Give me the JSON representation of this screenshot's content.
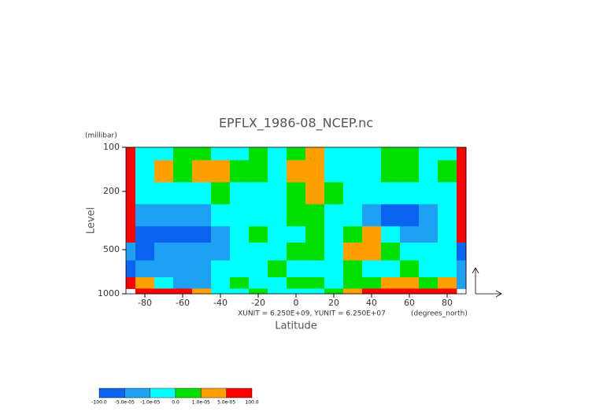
{
  "chart_data": {
    "type": "contour",
    "title": "EPFLX_1986-08_NCEP.nc",
    "x_label": "Latitude",
    "x_units": "(degrees_north)",
    "y_label": "Level",
    "y_units": "(millibar)",
    "annotation": "XUNIT = 6.250E+09, YUNIT = 6.250E+07",
    "x": [
      -90,
      -80,
      -70,
      -60,
      -50,
      -40,
      -30,
      -20,
      -10,
      0,
      10,
      20,
      30,
      40,
      50,
      60,
      70,
      80,
      90
    ],
    "y": [
      100,
      150,
      200,
      300,
      400,
      500,
      700,
      850,
      1000
    ],
    "z": [
      [
        7e-05,
        -5e-06,
        -5e-06,
        5e-06,
        5e-06,
        -5e-06,
        -5e-06,
        5e-06,
        -5e-06,
        5e-06,
        3e-05,
        -5e-06,
        -5e-06,
        -5e-06,
        5e-06,
        5e-06,
        -5e-06,
        -5e-06,
        7e-05
      ],
      [
        7e-05,
        -5e-06,
        3e-05,
        5e-06,
        3e-05,
        3e-05,
        5e-06,
        5e-06,
        -5e-06,
        3e-05,
        3e-05,
        -5e-06,
        -5e-06,
        -5e-06,
        5e-06,
        5e-06,
        -5e-06,
        5e-06,
        7e-05
      ],
      [
        7e-05,
        -5e-06,
        -5e-06,
        -5e-06,
        -5e-06,
        5e-06,
        -5e-06,
        -5e-06,
        -5e-06,
        5e-06,
        3e-05,
        5e-06,
        -5e-06,
        -5e-06,
        -5e-06,
        -5e-06,
        -5e-06,
        -5e-06,
        7e-05
      ],
      [
        7e-05,
        -3e-05,
        -3e-05,
        -3e-05,
        -3e-05,
        -5e-06,
        -5e-06,
        -5e-06,
        -5e-06,
        5e-06,
        5e-06,
        -5e-06,
        -5e-06,
        -3e-05,
        -7e-05,
        -7e-05,
        -3e-05,
        -5e-06,
        7e-05
      ],
      [
        7e-05,
        -7e-05,
        -7e-05,
        -7e-05,
        -7e-05,
        -3e-05,
        -5e-06,
        5e-06,
        -5e-06,
        -5e-06,
        5e-06,
        -5e-06,
        5e-06,
        3e-05,
        -5e-06,
        -3e-05,
        -3e-05,
        -5e-06,
        7e-05
      ],
      [
        -3e-05,
        -7e-05,
        -3e-05,
        -3e-05,
        -3e-05,
        -3e-05,
        -5e-06,
        -5e-06,
        -5e-06,
        5e-06,
        5e-06,
        -5e-06,
        3e-05,
        3e-05,
        5e-06,
        -5e-06,
        -5e-06,
        -5e-06,
        -7e-05
      ],
      [
        -7e-05,
        -3e-05,
        -3e-05,
        -3e-05,
        -3e-05,
        -5e-06,
        -5e-06,
        -5e-06,
        5e-06,
        -5e-06,
        -5e-06,
        -5e-06,
        5e-06,
        -5e-06,
        -5e-06,
        5e-06,
        -5e-06,
        -5e-06,
        -3e-05
      ],
      [
        7e-05,
        3e-05,
        -5e-06,
        -3e-05,
        -3e-05,
        -5e-06,
        5e-06,
        -5e-06,
        -5e-06,
        5e-06,
        5e-06,
        -5e-06,
        5e-06,
        5e-06,
        3e-05,
        3e-05,
        5e-06,
        3e-05,
        -3e-05
      ],
      [
        null,
        7e-05,
        7e-05,
        7e-05,
        3e-05,
        -5e-06,
        -5e-06,
        5e-06,
        -5e-06,
        -5e-06,
        -5e-06,
        5e-06,
        3e-05,
        7e-05,
        7e-05,
        7e-05,
        7e-05,
        7e-05,
        null
      ]
    ],
    "xlim": [
      -90,
      90
    ],
    "ylim": [
      1000,
      100
    ],
    "y_log": true,
    "xticks": [
      -80,
      -60,
      -40,
      -20,
      0,
      20,
      40,
      60,
      80
    ],
    "yticks": [
      100,
      200,
      500,
      1000
    ],
    "levels": [
      {
        "value": -100,
        "label": "-100.0"
      },
      {
        "value": -5e-05,
        "label": "-5.0e-05"
      },
      {
        "value": -1e-05,
        "label": "-1.0e-05"
      },
      {
        "value": 0,
        "label": "0.0"
      },
      {
        "value": 1e-05,
        "label": "1.0e-05"
      },
      {
        "value": 5e-05,
        "label": "5.0e-05"
      },
      {
        "value": 100,
        "label": "100.0"
      }
    ],
    "colors": [
      "#0a64f0",
      "#1ea0f5",
      "#00ffff",
      "#00e000",
      "#ffa000",
      "#ff0000"
    ]
  }
}
